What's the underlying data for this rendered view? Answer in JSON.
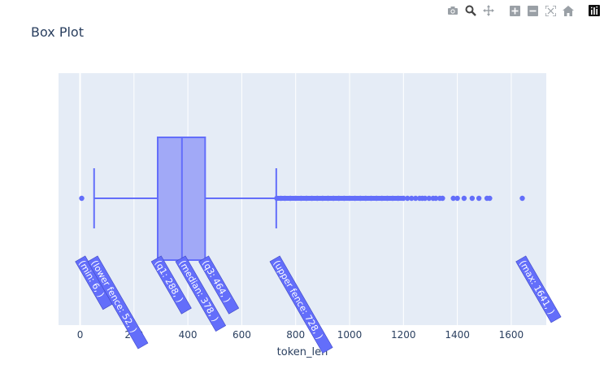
{
  "chart_data": {
    "type": "box",
    "title": "Box Plot",
    "xlabel": "token_len",
    "ylabel": "",
    "xlim": [
      -80,
      1730
    ],
    "xticks": [
      0,
      200,
      400,
      600,
      800,
      1000,
      1200,
      1400,
      1600
    ],
    "grid": true,
    "stats": {
      "min": 6,
      "lower_fence": 52,
      "q1": 288,
      "median": 378,
      "q3": 464,
      "upper_fence": 728,
      "max": 1641
    },
    "outliers": [
      6,
      730,
      745,
      760,
      780,
      800,
      820,
      840,
      860,
      880,
      900,
      920,
      940,
      960,
      980,
      1000,
      1020,
      1040,
      1060,
      1080,
      1100,
      1120,
      1140,
      1160,
      1180,
      1200,
      1215,
      1230,
      1245,
      1260,
      1270,
      1280,
      1295,
      1310,
      1320,
      1335,
      1345,
      1385,
      1400,
      1425,
      1455,
      1480,
      1510,
      1520,
      1641
    ],
    "annotations": [
      {
        "key": "min",
        "text": "(min: 6, )"
      },
      {
        "key": "lower_fence",
        "text": "(lower fence: 52, )"
      },
      {
        "key": "q1",
        "text": "(q1: 288, )"
      },
      {
        "key": "median",
        "text": "(median: 378, )"
      },
      {
        "key": "q3",
        "text": "(q3: 464, )"
      },
      {
        "key": "upper_fence",
        "text": "(upper fence: 728, )"
      },
      {
        "key": "max",
        "text": "(max: 1641, )"
      }
    ],
    "colors": {
      "box_fill": "#a1a9f7",
      "line": "#636efa",
      "plot_bg": "#e5ecf6",
      "grid": "#ffffff",
      "text": "#2a3f5f",
      "annotation_bg": "#636efa",
      "annotation_text": "#ffffff"
    }
  },
  "modebar": {
    "buttons": [
      {
        "icon": "camera-icon",
        "title": "Download plot as a png"
      },
      {
        "icon": "zoom-icon",
        "title": "Zoom"
      },
      {
        "icon": "pan-icon",
        "title": "Pan"
      },
      {
        "icon": "zoom-in-icon",
        "title": "Zoom in"
      },
      {
        "icon": "zoom-out-icon",
        "title": "Zoom out"
      },
      {
        "icon": "autoscale-icon",
        "title": "Autoscale"
      },
      {
        "icon": "reset-axes-icon",
        "title": "Reset axes"
      },
      {
        "icon": "plotly-logo-icon",
        "title": "Produced with Plotly"
      }
    ]
  }
}
